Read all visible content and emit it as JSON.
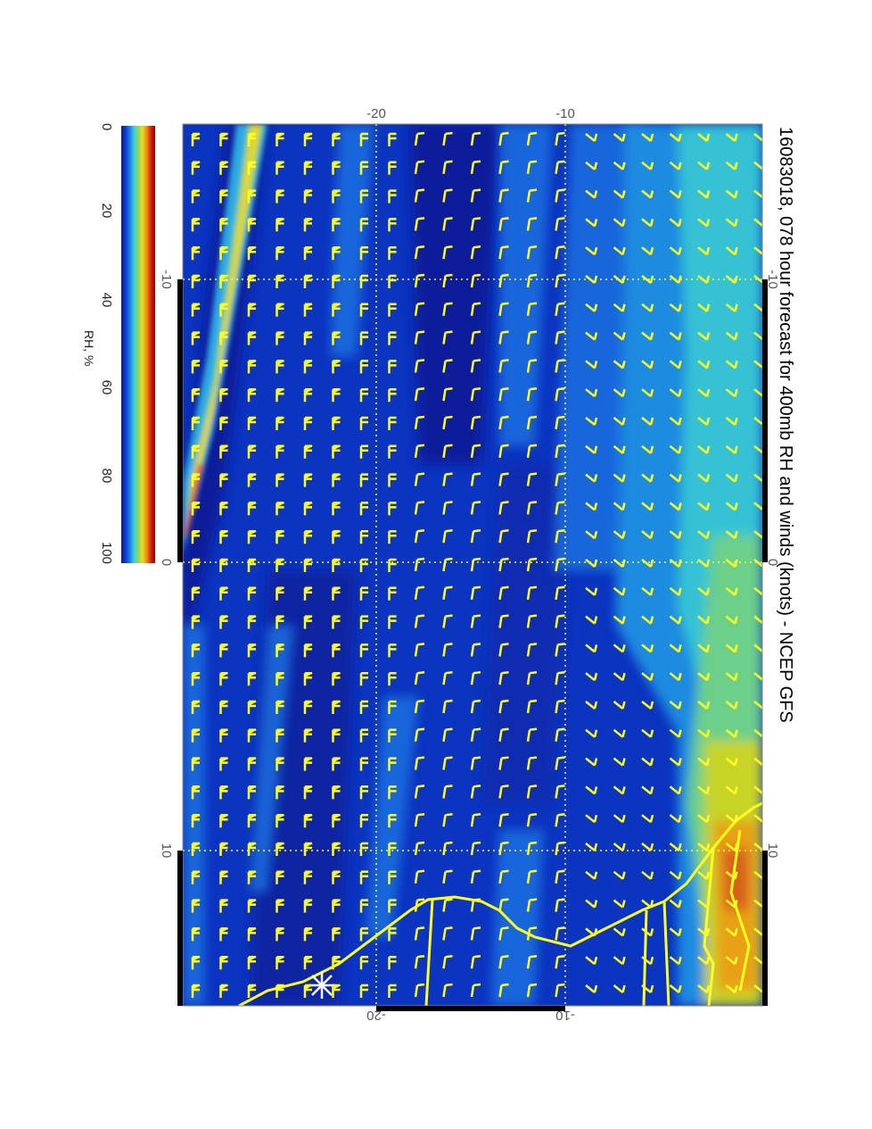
{
  "title": "16083018, 078 hour forecast for 400mb RH and winds (knots) - NCEP GFS",
  "colorbar": {
    "label": "RH, %",
    "ticks": [
      "0",
      "20",
      "40",
      "60",
      "80",
      "100"
    ],
    "stops": [
      "#0a1a8c",
      "#1042d8",
      "#1e90e6",
      "#3dd3cf",
      "#8fd36a",
      "#e8e019",
      "#f08a17",
      "#d81d10",
      "#7a0a0a"
    ]
  },
  "map": {
    "lat_labels": [
      "-10",
      "0",
      "10"
    ],
    "lon_labels_top": [
      "-20",
      "-10"
    ],
    "lon_labels_bottom": [
      "-20",
      "-10"
    ],
    "background_color": "#0b34c0",
    "wind_barb_color": "#ffff22",
    "coastline_color": "#ffff22",
    "marker": "white-star"
  }
}
